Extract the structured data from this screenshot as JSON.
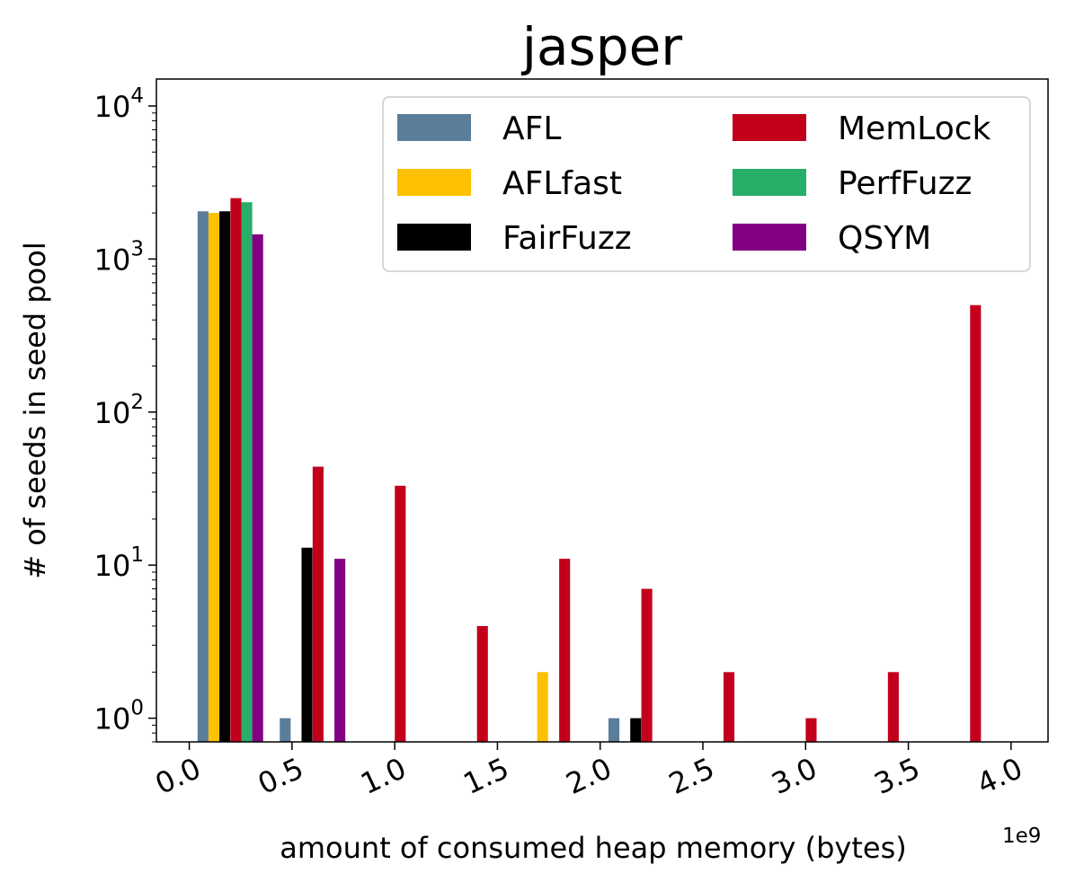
{
  "chart_data": {
    "type": "bar",
    "title": "jasper",
    "xlabel": "amount of consumed heap memory (bytes)",
    "x_offset_text": "1e9",
    "ylabel": "# of seeds in seed pool",
    "y_scale": "log",
    "ylim": [
      0.7,
      15000
    ],
    "xlim": [
      -0.16,
      4.18
    ],
    "x_ticks": [
      "0.0",
      "0.5",
      "1.0",
      "1.5",
      "2.0",
      "2.5",
      "3.0",
      "3.5",
      "4.0"
    ],
    "y_ticks": [
      {
        "base": "10",
        "exp": "0"
      },
      {
        "base": "10",
        "exp": "1"
      },
      {
        "base": "10",
        "exp": "2"
      },
      {
        "base": "10",
        "exp": "3"
      },
      {
        "base": "10",
        "exp": "4"
      }
    ],
    "bar_width": 0.053,
    "legend_position": "upper right",
    "legend_columns": 2,
    "series": [
      {
        "name": "AFL",
        "color": "#5a7d9a",
        "points": [
          [
            0.067,
            2050
          ],
          [
            0.467,
            1
          ],
          [
            2.067,
            1
          ]
        ]
      },
      {
        "name": "AFLfast",
        "color": "#fdc102",
        "points": [
          [
            0.12,
            2000
          ],
          [
            1.72,
            2
          ]
        ]
      },
      {
        "name": "FairFuzz",
        "color": "#000000",
        "points": [
          [
            0.173,
            2050
          ],
          [
            0.573,
            13
          ],
          [
            2.173,
            1
          ]
        ]
      },
      {
        "name": "MemLock",
        "color": "#c2001b",
        "points": [
          [
            0.227,
            2500
          ],
          [
            0.627,
            44
          ],
          [
            1.027,
            33
          ],
          [
            1.427,
            4
          ],
          [
            1.827,
            11
          ],
          [
            2.227,
            7
          ],
          [
            2.627,
            2
          ],
          [
            3.027,
            1
          ],
          [
            3.427,
            2
          ],
          [
            3.827,
            500
          ]
        ]
      },
      {
        "name": "PerfFuzz",
        "color": "#27ae68",
        "points": [
          [
            0.28,
            2350
          ]
        ]
      },
      {
        "name": "QSYM",
        "color": "#820081",
        "points": [
          [
            0.333,
            1450
          ],
          [
            0.733,
            11
          ]
        ]
      }
    ]
  }
}
